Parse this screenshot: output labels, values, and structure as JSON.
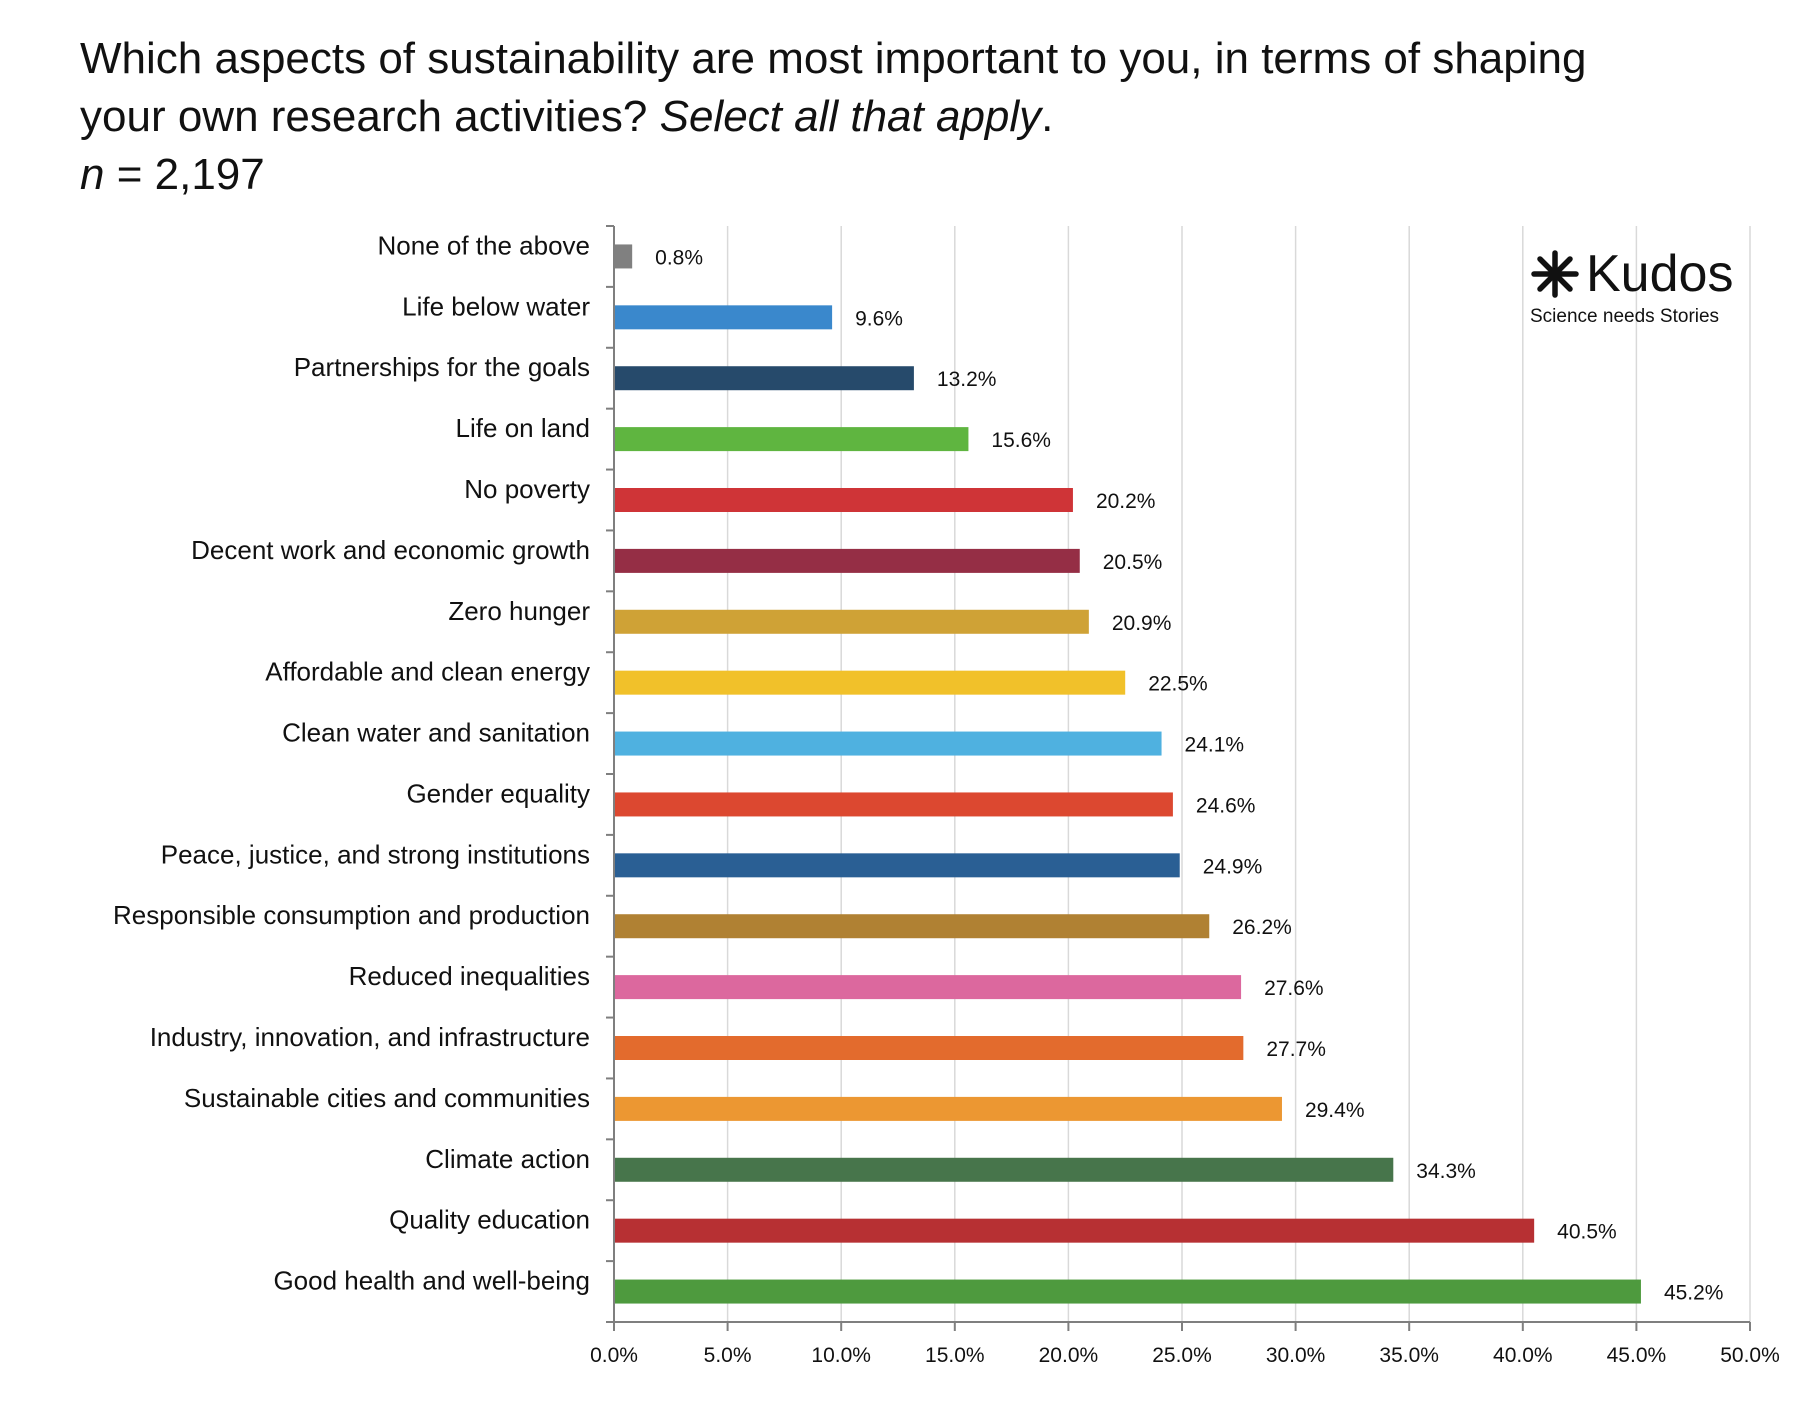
{
  "title": {
    "line1": "Which aspects of sustainability are most important to you, in terms of shaping",
    "line2_main": "your own research activities? ",
    "line2_italic": "Select all that apply",
    "line2_end": ".",
    "n_symbol": "n",
    "n_value": " = 2,197"
  },
  "logo": {
    "icon": "asterisk-icon",
    "brand": "Kudos",
    "tagline": "Science needs Stories"
  },
  "chart_data": {
    "type": "bar",
    "orientation": "horizontal",
    "categories": [
      "None of the above",
      "Life below water",
      "Partnerships for the goals",
      "Life on land",
      "No poverty",
      "Decent work and economic growth",
      "Zero hunger",
      "Affordable and clean energy",
      "Clean water and sanitation",
      "Gender equality",
      "Peace, justice, and strong institutions",
      "Responsible consumption and production",
      "Reduced inequalities",
      "Industry, innovation, and infrastructure",
      "Sustainable cities and communities",
      "Climate action",
      "Quality education",
      "Good health and well-being"
    ],
    "values": [
      0.8,
      9.6,
      13.2,
      15.6,
      20.2,
      20.5,
      20.9,
      22.5,
      24.1,
      24.6,
      24.9,
      26.2,
      27.6,
      27.7,
      29.4,
      34.3,
      40.5,
      45.2
    ],
    "value_labels": [
      "0.8%",
      "9.6%",
      "13.2%",
      "15.6%",
      "20.2%",
      "20.5%",
      "20.9%",
      "22.5%",
      "24.1%",
      "24.6%",
      "24.9%",
      "26.2%",
      "27.6%",
      "27.7%",
      "29.4%",
      "34.3%",
      "40.5%",
      "45.2%"
    ],
    "colors": [
      "#808080",
      "#3a88cc",
      "#264a6b",
      "#5fb540",
      "#cf3437",
      "#952e45",
      "#cfa236",
      "#f1c12a",
      "#4fb1e0",
      "#dc4830",
      "#2a5f94",
      "#b08133",
      "#dc689e",
      "#e36b2d",
      "#ec9732",
      "#47754b",
      "#b73033",
      "#4e9a3e"
    ],
    "x_ticks": [
      0,
      5,
      10,
      15,
      20,
      25,
      30,
      35,
      40,
      45,
      50
    ],
    "x_tick_labels": [
      "0.0%",
      "5.0%",
      "10.0%",
      "15.0%",
      "20.0%",
      "25.0%",
      "30.0%",
      "35.0%",
      "40.0%",
      "45.0%",
      "50.0%"
    ],
    "xlim": [
      0,
      50
    ],
    "grid": "vertical",
    "xlabel": "",
    "ylabel": ""
  }
}
